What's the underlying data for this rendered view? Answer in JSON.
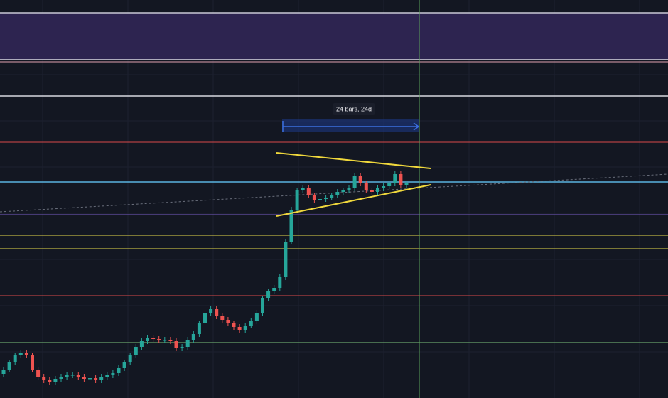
{
  "measure_label": "24 bars, 24d"
}
